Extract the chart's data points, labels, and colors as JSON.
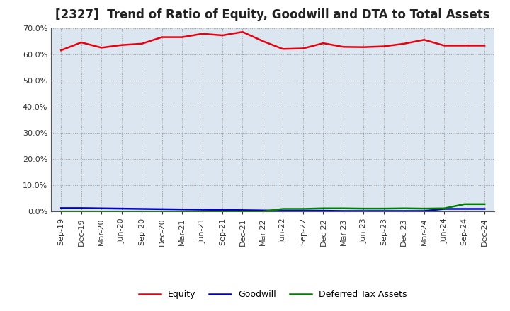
{
  "title": "[2327]  Trend of Ratio of Equity, Goodwill and DTA to Total Assets",
  "x_labels": [
    "Sep-19",
    "Dec-19",
    "Mar-20",
    "Jun-20",
    "Sep-20",
    "Dec-20",
    "Mar-21",
    "Jun-21",
    "Sep-21",
    "Dec-21",
    "Mar-22",
    "Jun-22",
    "Sep-22",
    "Dec-22",
    "Mar-23",
    "Jun-23",
    "Sep-23",
    "Dec-23",
    "Mar-24",
    "Jun-24",
    "Sep-24",
    "Dec-24"
  ],
  "equity": [
    0.615,
    0.645,
    0.625,
    0.635,
    0.64,
    0.665,
    0.665,
    0.678,
    0.672,
    0.685,
    0.65,
    0.62,
    0.622,
    0.642,
    0.628,
    0.627,
    0.63,
    0.64,
    0.655,
    0.633,
    0.633,
    0.633
  ],
  "goodwill": [
    0.013,
    0.013,
    0.012,
    0.011,
    0.01,
    0.009,
    0.008,
    0.007,
    0.006,
    0.005,
    0.004,
    0.003,
    0.003,
    0.003,
    0.002,
    0.002,
    0.002,
    0.002,
    0.002,
    0.01,
    0.01,
    0.01
  ],
  "dta": [
    0.0,
    0.0,
    0.0,
    0.0,
    0.0,
    0.0,
    0.0,
    0.0,
    0.0,
    0.0,
    0.0,
    0.01,
    0.01,
    0.012,
    0.012,
    0.011,
    0.011,
    0.012,
    0.011,
    0.012,
    0.028,
    0.028
  ],
  "equity_color": "#e8000e",
  "goodwill_color": "#0000cc",
  "dta_color": "#008000",
  "fig_bg_color": "#ffffff",
  "plot_bg_color": "#dce6f0",
  "grid_color": "#999999",
  "spine_color": "#555555",
  "ylim_min": 0.0,
  "ylim_max": 0.7,
  "yticks": [
    0.0,
    0.1,
    0.2,
    0.3,
    0.4,
    0.5,
    0.6,
    0.7
  ],
  "legend_labels": [
    "Equity",
    "Goodwill",
    "Deferred Tax Assets"
  ],
  "title_fontsize": 12,
  "tick_fontsize": 8,
  "legend_fontsize": 9,
  "line_width": 1.8
}
